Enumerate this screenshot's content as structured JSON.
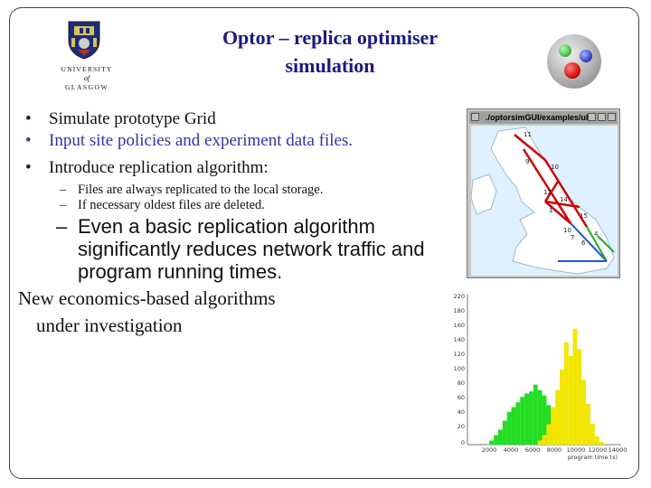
{
  "university": {
    "line1": "UNIVERSITY",
    "line2": "of",
    "line3": "GLASGOW"
  },
  "title": {
    "line1": "Optor – replica optimiser",
    "line2": "simulation"
  },
  "bullets": [
    {
      "marker": "•",
      "text": "Simulate prototype Grid"
    },
    {
      "marker": "•",
      "text": "Input site policies and experiment data files."
    },
    {
      "marker": "•",
      "text": "Introduce replication algorithm:"
    }
  ],
  "sub_bullets": [
    {
      "marker": "–",
      "text": "Files are always replicated to the local storage."
    },
    {
      "marker": "–",
      "text": "If necessary oldest files are deleted."
    }
  ],
  "big_bullet": {
    "marker": "–",
    "text": "Even a basic replication algorithm significantly reduces network traffic and program running times."
  },
  "closing": {
    "line1": "New economics-based algorithms",
    "line2": "under investigation"
  },
  "map_window": {
    "title": "./optorsimGUI/examples/uke",
    "node_labels": [
      "11",
      "9",
      "10",
      "12",
      "14",
      "1",
      "15",
      "10",
      "7",
      "6",
      "4"
    ]
  },
  "histogram": {
    "y_ticks": [
      "220",
      "180",
      "160",
      "140",
      "120",
      "100",
      "80",
      "60",
      "40",
      "20",
      "0"
    ],
    "x_ticks": [
      "2000",
      "4000",
      "6000",
      "8000",
      "10000",
      "12000",
      "14000"
    ],
    "x_label": "program time (s)",
    "x_start": 0,
    "x_end": 14000,
    "y_max": 220,
    "green_color": "#22dd22",
    "yellow_color": "#f2e600",
    "green_series": [
      [
        2000,
        6
      ],
      [
        2400,
        14
      ],
      [
        2800,
        22
      ],
      [
        3200,
        35
      ],
      [
        3600,
        48
      ],
      [
        4000,
        55
      ],
      [
        4400,
        62
      ],
      [
        4800,
        70
      ],
      [
        5200,
        75
      ],
      [
        5600,
        78
      ],
      [
        6000,
        88
      ],
      [
        6400,
        80
      ],
      [
        6800,
        72
      ],
      [
        7200,
        58
      ],
      [
        7600,
        40
      ],
      [
        8000,
        25
      ],
      [
        8400,
        12
      ],
      [
        8800,
        5
      ]
    ],
    "yellow_series": [
      [
        6400,
        6
      ],
      [
        6800,
        14
      ],
      [
        7200,
        30
      ],
      [
        7600,
        55
      ],
      [
        8000,
        80
      ],
      [
        8400,
        110
      ],
      [
        8800,
        150
      ],
      [
        9200,
        130
      ],
      [
        9600,
        170
      ],
      [
        10000,
        140
      ],
      [
        10400,
        95
      ],
      [
        10800,
        60
      ],
      [
        11200,
        30
      ],
      [
        11600,
        12
      ],
      [
        12000,
        4
      ]
    ]
  }
}
